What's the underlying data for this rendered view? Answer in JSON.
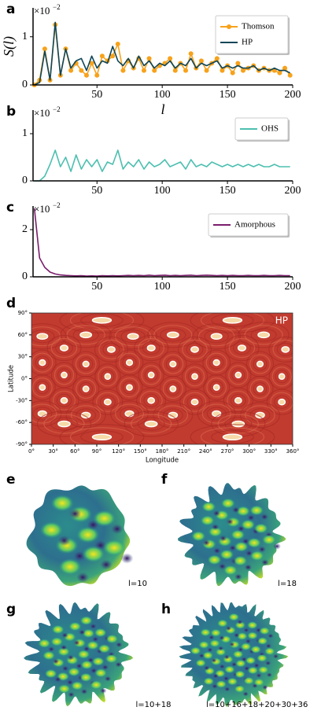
{
  "chart_data": [
    {
      "type": "line",
      "panel": "a",
      "ylabel": "S(l)",
      "xlabel": "l",
      "y_multiplier": "×10",
      "y_multiplier_exp": "−2",
      "x": [
        2,
        6,
        10,
        14,
        18,
        22,
        26,
        30,
        34,
        38,
        42,
        46,
        50,
        54,
        58,
        62,
        66,
        70,
        74,
        78,
        82,
        86,
        90,
        94,
        98,
        102,
        106,
        110,
        114,
        118,
        122,
        126,
        130,
        134,
        138,
        142,
        146,
        150,
        154,
        158,
        162,
        166,
        170,
        174,
        178,
        182,
        186,
        190,
        194,
        198
      ],
      "series": [
        {
          "name": "Thomson",
          "color": "#f7a21b",
          "marker": true,
          "values": [
            0,
            0.1,
            0.75,
            0.1,
            1.25,
            0.2,
            0.75,
            0.3,
            0.45,
            0.3,
            0.2,
            0.45,
            0.2,
            0.6,
            0.5,
            0.6,
            0.85,
            0.3,
            0.5,
            0.35,
            0.55,
            0.3,
            0.55,
            0.3,
            0.4,
            0.45,
            0.55,
            0.3,
            0.45,
            0.3,
            0.65,
            0.35,
            0.5,
            0.3,
            0.45,
            0.55,
            0.3,
            0.4,
            0.25,
            0.45,
            0.3,
            0.35,
            0.4,
            0.3,
            0.35,
            0.3,
            0.3,
            0.25,
            0.35,
            0.2
          ]
        },
        {
          "name": "HP",
          "color": "#0e4658",
          "marker": false,
          "values": [
            0,
            0.05,
            0.7,
            0.1,
            1.3,
            0.2,
            0.75,
            0.35,
            0.5,
            0.55,
            0.3,
            0.6,
            0.35,
            0.5,
            0.45,
            0.8,
            0.5,
            0.4,
            0.55,
            0.35,
            0.6,
            0.4,
            0.5,
            0.35,
            0.45,
            0.4,
            0.5,
            0.35,
            0.45,
            0.4,
            0.55,
            0.35,
            0.45,
            0.4,
            0.45,
            0.5,
            0.35,
            0.4,
            0.35,
            0.4,
            0.35,
            0.35,
            0.4,
            0.3,
            0.35,
            0.3,
            0.35,
            0.3,
            0.3,
            0.25
          ]
        }
      ],
      "xlim": [
        1,
        200
      ],
      "xticks": [
        50,
        100,
        150,
        200
      ],
      "ylim": [
        0,
        1.6
      ],
      "yticks": [
        0,
        1
      ],
      "legend": "upper right"
    },
    {
      "type": "line",
      "panel": "b",
      "y_multiplier": "×10",
      "y_multiplier_exp": "−2",
      "x": [
        2,
        6,
        10,
        14,
        18,
        22,
        26,
        30,
        34,
        38,
        42,
        46,
        50,
        54,
        58,
        62,
        66,
        70,
        74,
        78,
        82,
        86,
        90,
        94,
        98,
        102,
        106,
        110,
        114,
        118,
        122,
        126,
        130,
        134,
        138,
        142,
        146,
        150,
        154,
        158,
        162,
        166,
        170,
        174,
        178,
        182,
        186,
        190,
        194,
        198
      ],
      "series": [
        {
          "name": "OHS",
          "color": "#4dbfb0",
          "marker": false,
          "values": [
            0,
            0,
            0.1,
            0.35,
            0.65,
            0.3,
            0.5,
            0.2,
            0.55,
            0.25,
            0.45,
            0.3,
            0.45,
            0.2,
            0.4,
            0.35,
            0.65,
            0.25,
            0.4,
            0.3,
            0.45,
            0.25,
            0.4,
            0.3,
            0.35,
            0.45,
            0.3,
            0.35,
            0.4,
            0.25,
            0.45,
            0.3,
            0.35,
            0.3,
            0.4,
            0.35,
            0.3,
            0.35,
            0.3,
            0.35,
            0.3,
            0.35,
            0.3,
            0.35,
            0.3,
            0.3,
            0.35,
            0.3,
            0.3,
            0.3
          ]
        }
      ],
      "xlim": [
        1,
        200
      ],
      "xticks": [
        50,
        100,
        150,
        200
      ],
      "ylim": [
        0,
        1.5
      ],
      "yticks": [
        0,
        1
      ],
      "legend": "upper right"
    },
    {
      "type": "line",
      "panel": "c",
      "y_multiplier": "×10",
      "y_multiplier_exp": "−2",
      "x": [
        2,
        6,
        10,
        14,
        18,
        22,
        26,
        30,
        34,
        38,
        42,
        46,
        50,
        54,
        58,
        62,
        66,
        70,
        74,
        78,
        82,
        86,
        90,
        94,
        98,
        102,
        106,
        110,
        114,
        118,
        122,
        126,
        130,
        134,
        138,
        142,
        146,
        150,
        154,
        158,
        162,
        166,
        170,
        174,
        178,
        182,
        186,
        190,
        194,
        198
      ],
      "series": [
        {
          "name": "Amorphous",
          "color": "#7a1d6c",
          "marker": false,
          "values": [
            2.9,
            0.8,
            0.4,
            0.2,
            0.12,
            0.08,
            0.06,
            0.05,
            0.04,
            0.05,
            0.03,
            0.04,
            0.03,
            0.05,
            0.04,
            0.05,
            0.04,
            0.05,
            0.06,
            0.05,
            0.06,
            0.05,
            0.07,
            0.05,
            0.06,
            0.07,
            0.05,
            0.06,
            0.05,
            0.06,
            0.07,
            0.05,
            0.06,
            0.07,
            0.06,
            0.05,
            0.06,
            0.05,
            0.06,
            0.05,
            0.05,
            0.06,
            0.05,
            0.05,
            0.06,
            0.05,
            0.05,
            0.06,
            0.05,
            0.05
          ]
        }
      ],
      "xlim": [
        1,
        200
      ],
      "xticks": [
        50,
        100,
        150,
        200
      ],
      "ylim": [
        0,
        3
      ],
      "yticks": [
        0,
        2
      ],
      "legend": "upper right"
    },
    {
      "type": "map",
      "panel": "d",
      "title": "HP",
      "xlabel": "Longitude",
      "ylabel": "Latitude",
      "color": "#c23b2f",
      "x": [
        97,
        277,
        15,
        75,
        140,
        195,
        255,
        320,
        45,
        110,
        165,
        225,
        290,
        350,
        15,
        75,
        135,
        195,
        255,
        315,
        45,
        105,
        165,
        225,
        285,
        345,
        15,
        75,
        135,
        195,
        255,
        315,
        45,
        105,
        165,
        225,
        285,
        345,
        15,
        75,
        135,
        195,
        255,
        315,
        45,
        165,
        285,
        97,
        277
      ],
      "y": [
        80,
        80,
        58,
        60,
        58,
        60,
        58,
        60,
        42,
        40,
        42,
        40,
        42,
        40,
        22,
        20,
        22,
        20,
        22,
        20,
        5,
        3,
        5,
        3,
        5,
        3,
        -12,
        -14,
        -12,
        -14,
        -12,
        -14,
        -30,
        -32,
        -30,
        -32,
        -30,
        -32,
        -48,
        -50,
        -48,
        -50,
        -48,
        -50,
        -62,
        -62,
        -62,
        -80,
        -80
      ],
      "xlim": [
        0,
        360
      ],
      "ylim": [
        -90,
        90
      ],
      "xticks": [
        {
          "value": 0,
          "label": "0°"
        },
        {
          "value": 30,
          "label": "30°"
        },
        {
          "value": 60,
          "label": "60°"
        },
        {
          "value": 90,
          "label": "90°"
        },
        {
          "value": 120,
          "label": "120°"
        },
        {
          "value": 150,
          "label": "150°"
        },
        {
          "value": 180,
          "label": "180°"
        },
        {
          "value": 210,
          "label": "210°"
        },
        {
          "value": 240,
          "label": "240°"
        },
        {
          "value": 270,
          "label": "270°"
        },
        {
          "value": 300,
          "label": "300°"
        },
        {
          "value": 330,
          "label": "330°"
        },
        {
          "value": 360,
          "label": "360°"
        }
      ],
      "yticks": [
        {
          "value": -90,
          "label": "-90°"
        },
        {
          "value": -60,
          "label": "-60°"
        },
        {
          "value": -30,
          "label": "-30°"
        },
        {
          "value": 0,
          "label": "0°"
        },
        {
          "value": 30,
          "label": "30°"
        },
        {
          "value": 60,
          "label": "60°"
        },
        {
          "value": 90,
          "label": "90°"
        }
      ]
    }
  ],
  "renders": [
    {
      "panel": "e",
      "label": "l=10"
    },
    {
      "panel": "f",
      "label": "l=18"
    },
    {
      "panel": "g",
      "label": "l=10+18"
    },
    {
      "panel": "h",
      "label": "l=10+16+18+20+30+36"
    }
  ]
}
